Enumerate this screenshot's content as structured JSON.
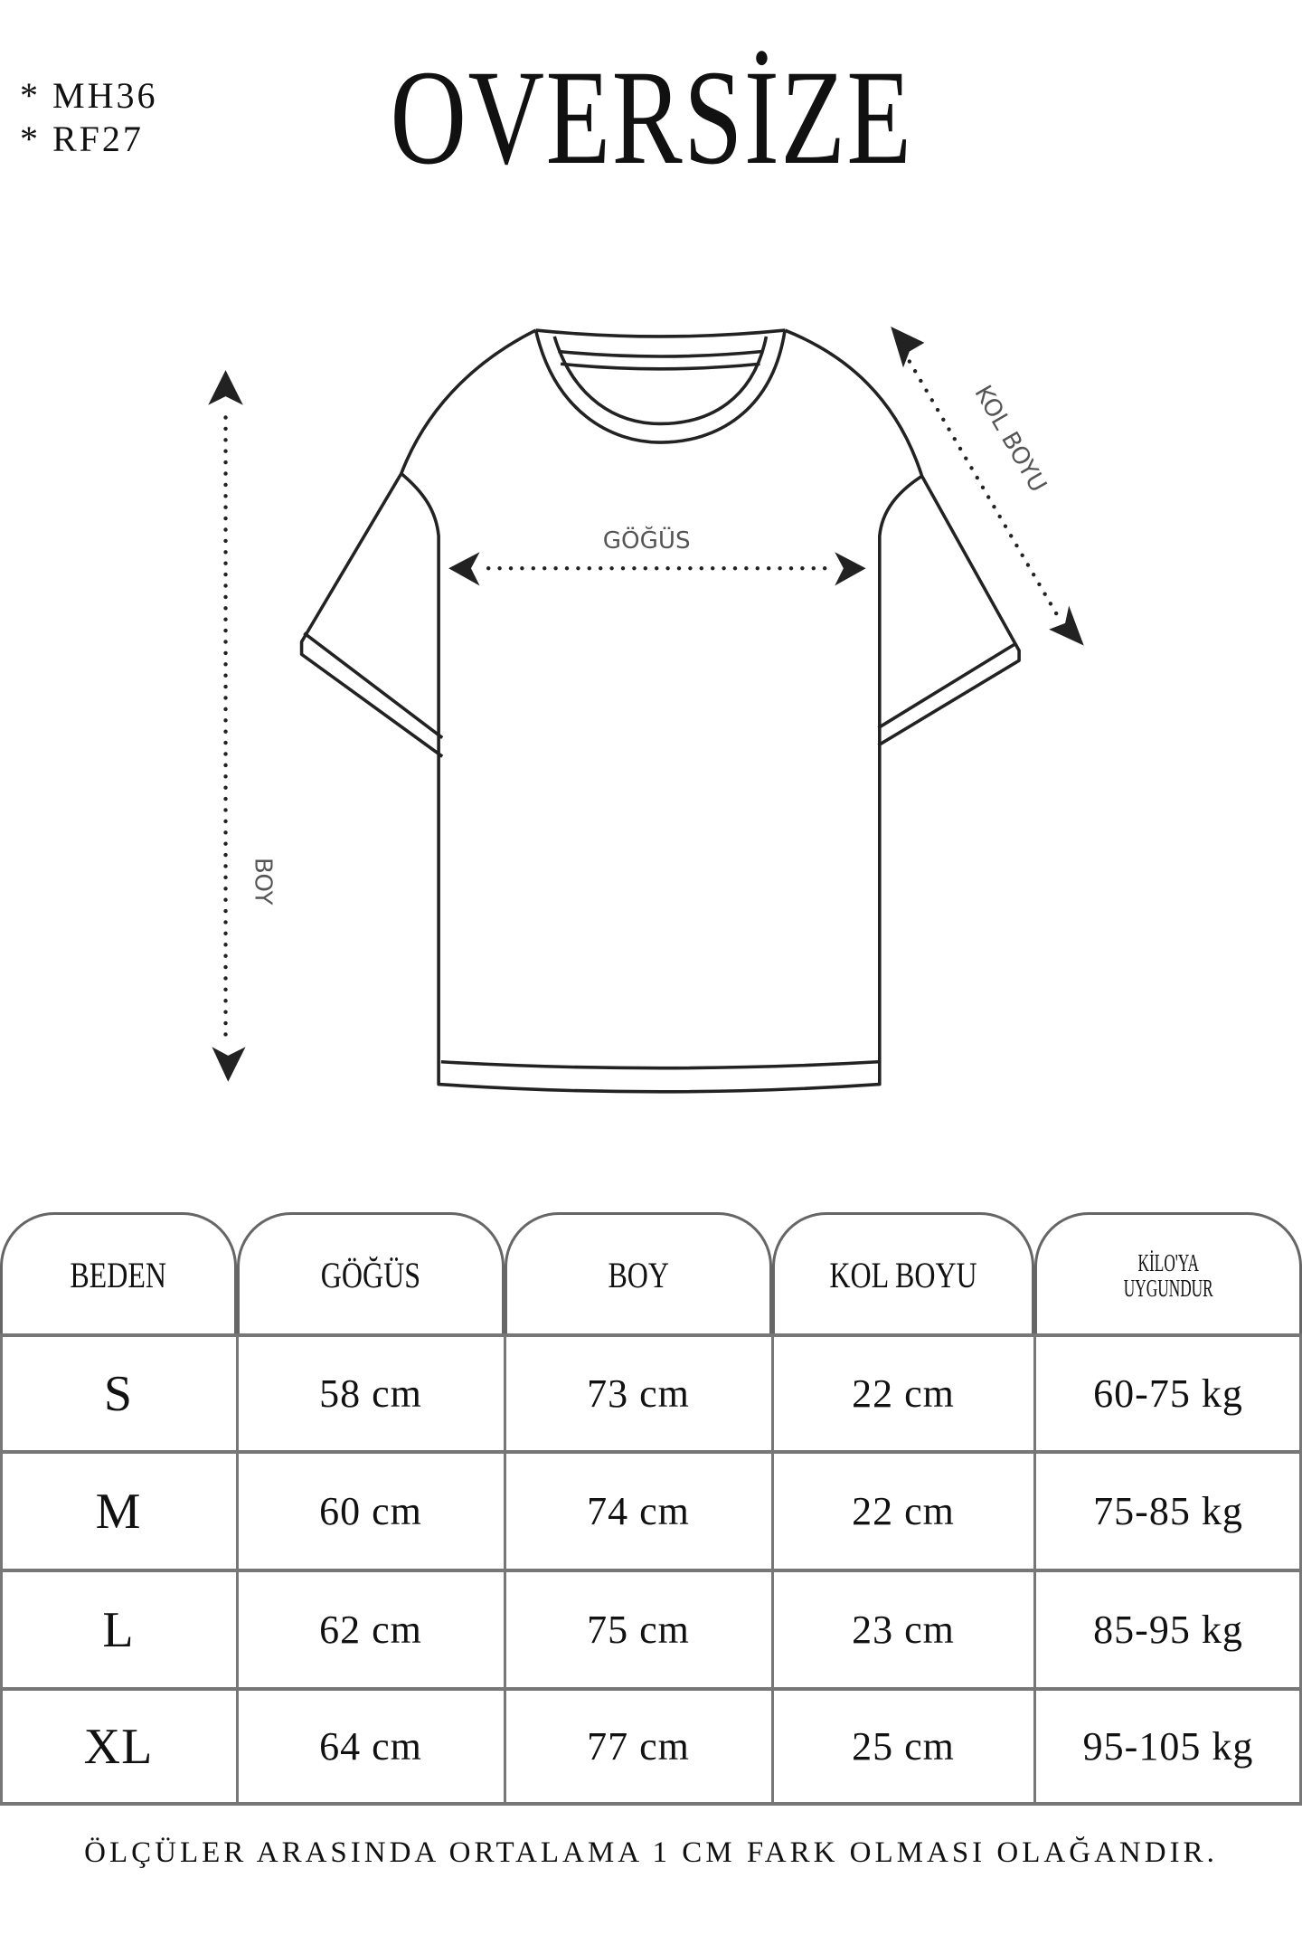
{
  "codes": [
    "*  MH36",
    "*  RF27"
  ],
  "title": "OVERSİZE",
  "diagram": {
    "chest_label": "GÖĞÜS",
    "length_label": "BOY",
    "sleeve_label": "KOL BOYU"
  },
  "table": {
    "headers": [
      "BEDEN",
      "GÖĞÜS",
      "BOY",
      "KOL BOYU",
      "KİLO'YA UYGUNDUR"
    ],
    "header_weight_lines": [
      "KİLO'YA",
      "UYGUNDUR"
    ],
    "rows": [
      [
        "S",
        "58 cm",
        "73 cm",
        "22  cm",
        "60-75 kg"
      ],
      [
        "M",
        "60 cm",
        "74 cm",
        "22 cm",
        "75-85 kg"
      ],
      [
        "L",
        "62 cm",
        "75 cm",
        "23 cm",
        "85-95 kg"
      ],
      [
        "XL",
        "64 cm",
        "77 cm",
        "25 cm",
        "95-105 kg"
      ]
    ]
  },
  "footer": "ÖLÇÜLER ARASINDA ORTALAMA 1 CM FARK OLMASI OLAĞANDIR."
}
